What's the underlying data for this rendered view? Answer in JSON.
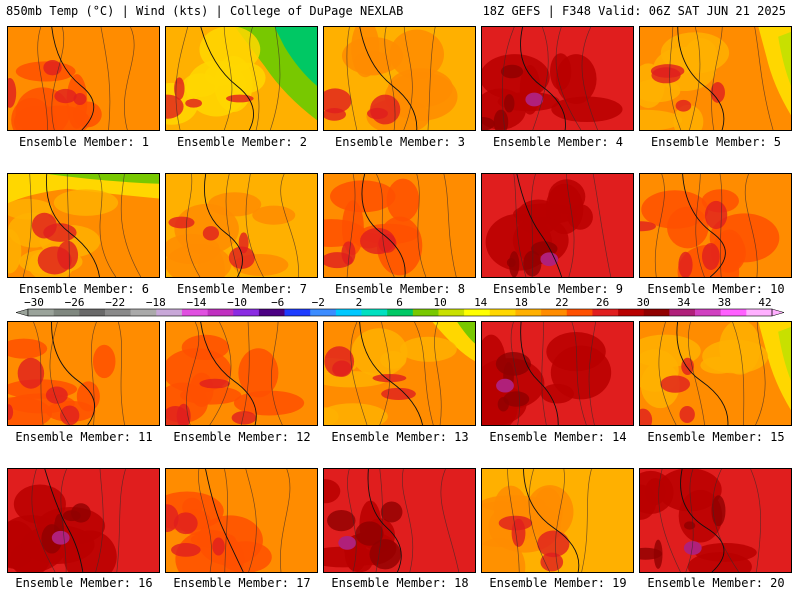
{
  "header": {
    "left": "850mb Temp (°C) | Wind (kts) | College of DuPage NEXLAB",
    "right": "18Z GEFS | F348 Valid: 06Z SAT JUN 21 2025"
  },
  "members": [
    {
      "caption": "Ensemble Member: 1",
      "tone": "warm"
    },
    {
      "caption": "Ensemble Member: 2",
      "tone": "cool-ne"
    },
    {
      "caption": "Ensemble Member: 3",
      "tone": "mild"
    },
    {
      "caption": "Ensemble Member: 4",
      "tone": "hot"
    },
    {
      "caption": "Ensemble Member: 5",
      "tone": "mild-e"
    },
    {
      "caption": "Ensemble Member: 6",
      "tone": "cool-n"
    },
    {
      "caption": "Ensemble Member: 7",
      "tone": "mild"
    },
    {
      "caption": "Ensemble Member: 8",
      "tone": "warm"
    },
    {
      "caption": "Ensemble Member: 9",
      "tone": "hot"
    },
    {
      "caption": "Ensemble Member: 10",
      "tone": "warm"
    },
    {
      "caption": "Ensemble Member: 11",
      "tone": "warm"
    },
    {
      "caption": "Ensemble Member: 12",
      "tone": "warm"
    },
    {
      "caption": "Ensemble Member: 13",
      "tone": "mild-ne"
    },
    {
      "caption": "Ensemble Member: 14",
      "tone": "hot"
    },
    {
      "caption": "Ensemble Member: 15",
      "tone": "mild-e"
    },
    {
      "caption": "Ensemble Member: 16",
      "tone": "hot"
    },
    {
      "caption": "Ensemble Member: 17",
      "tone": "warm"
    },
    {
      "caption": "Ensemble Member: 18",
      "tone": "hot"
    },
    {
      "caption": "Ensemble Member: 19",
      "tone": "mild"
    },
    {
      "caption": "Ensemble Member: 20",
      "tone": "hot"
    }
  ],
  "colorbar": {
    "labels": [
      "−30",
      "−26",
      "−22",
      "−18",
      "−14",
      "−10",
      "−6",
      "−2",
      "2",
      "6",
      "10",
      "14",
      "18",
      "22",
      "26",
      "30",
      "34",
      "38",
      "42"
    ],
    "colors": [
      "#9aa39a",
      "#7f877f",
      "#6a6a6a",
      "#8a8a8a",
      "#aaaaaa",
      "#c8a8d8",
      "#e050e0",
      "#c030c0",
      "#8a2be2",
      "#4b0082",
      "#1e3cff",
      "#3c8cff",
      "#00c8ff",
      "#00e0c0",
      "#00c864",
      "#78c800",
      "#c8e000",
      "#ffff00",
      "#ffd700",
      "#ffb000",
      "#ff8c00",
      "#ff5000",
      "#e01e1e",
      "#b80000",
      "#900000",
      "#b0207a",
      "#d040c0",
      "#ff60ff",
      "#ffb0ff"
    ]
  }
}
